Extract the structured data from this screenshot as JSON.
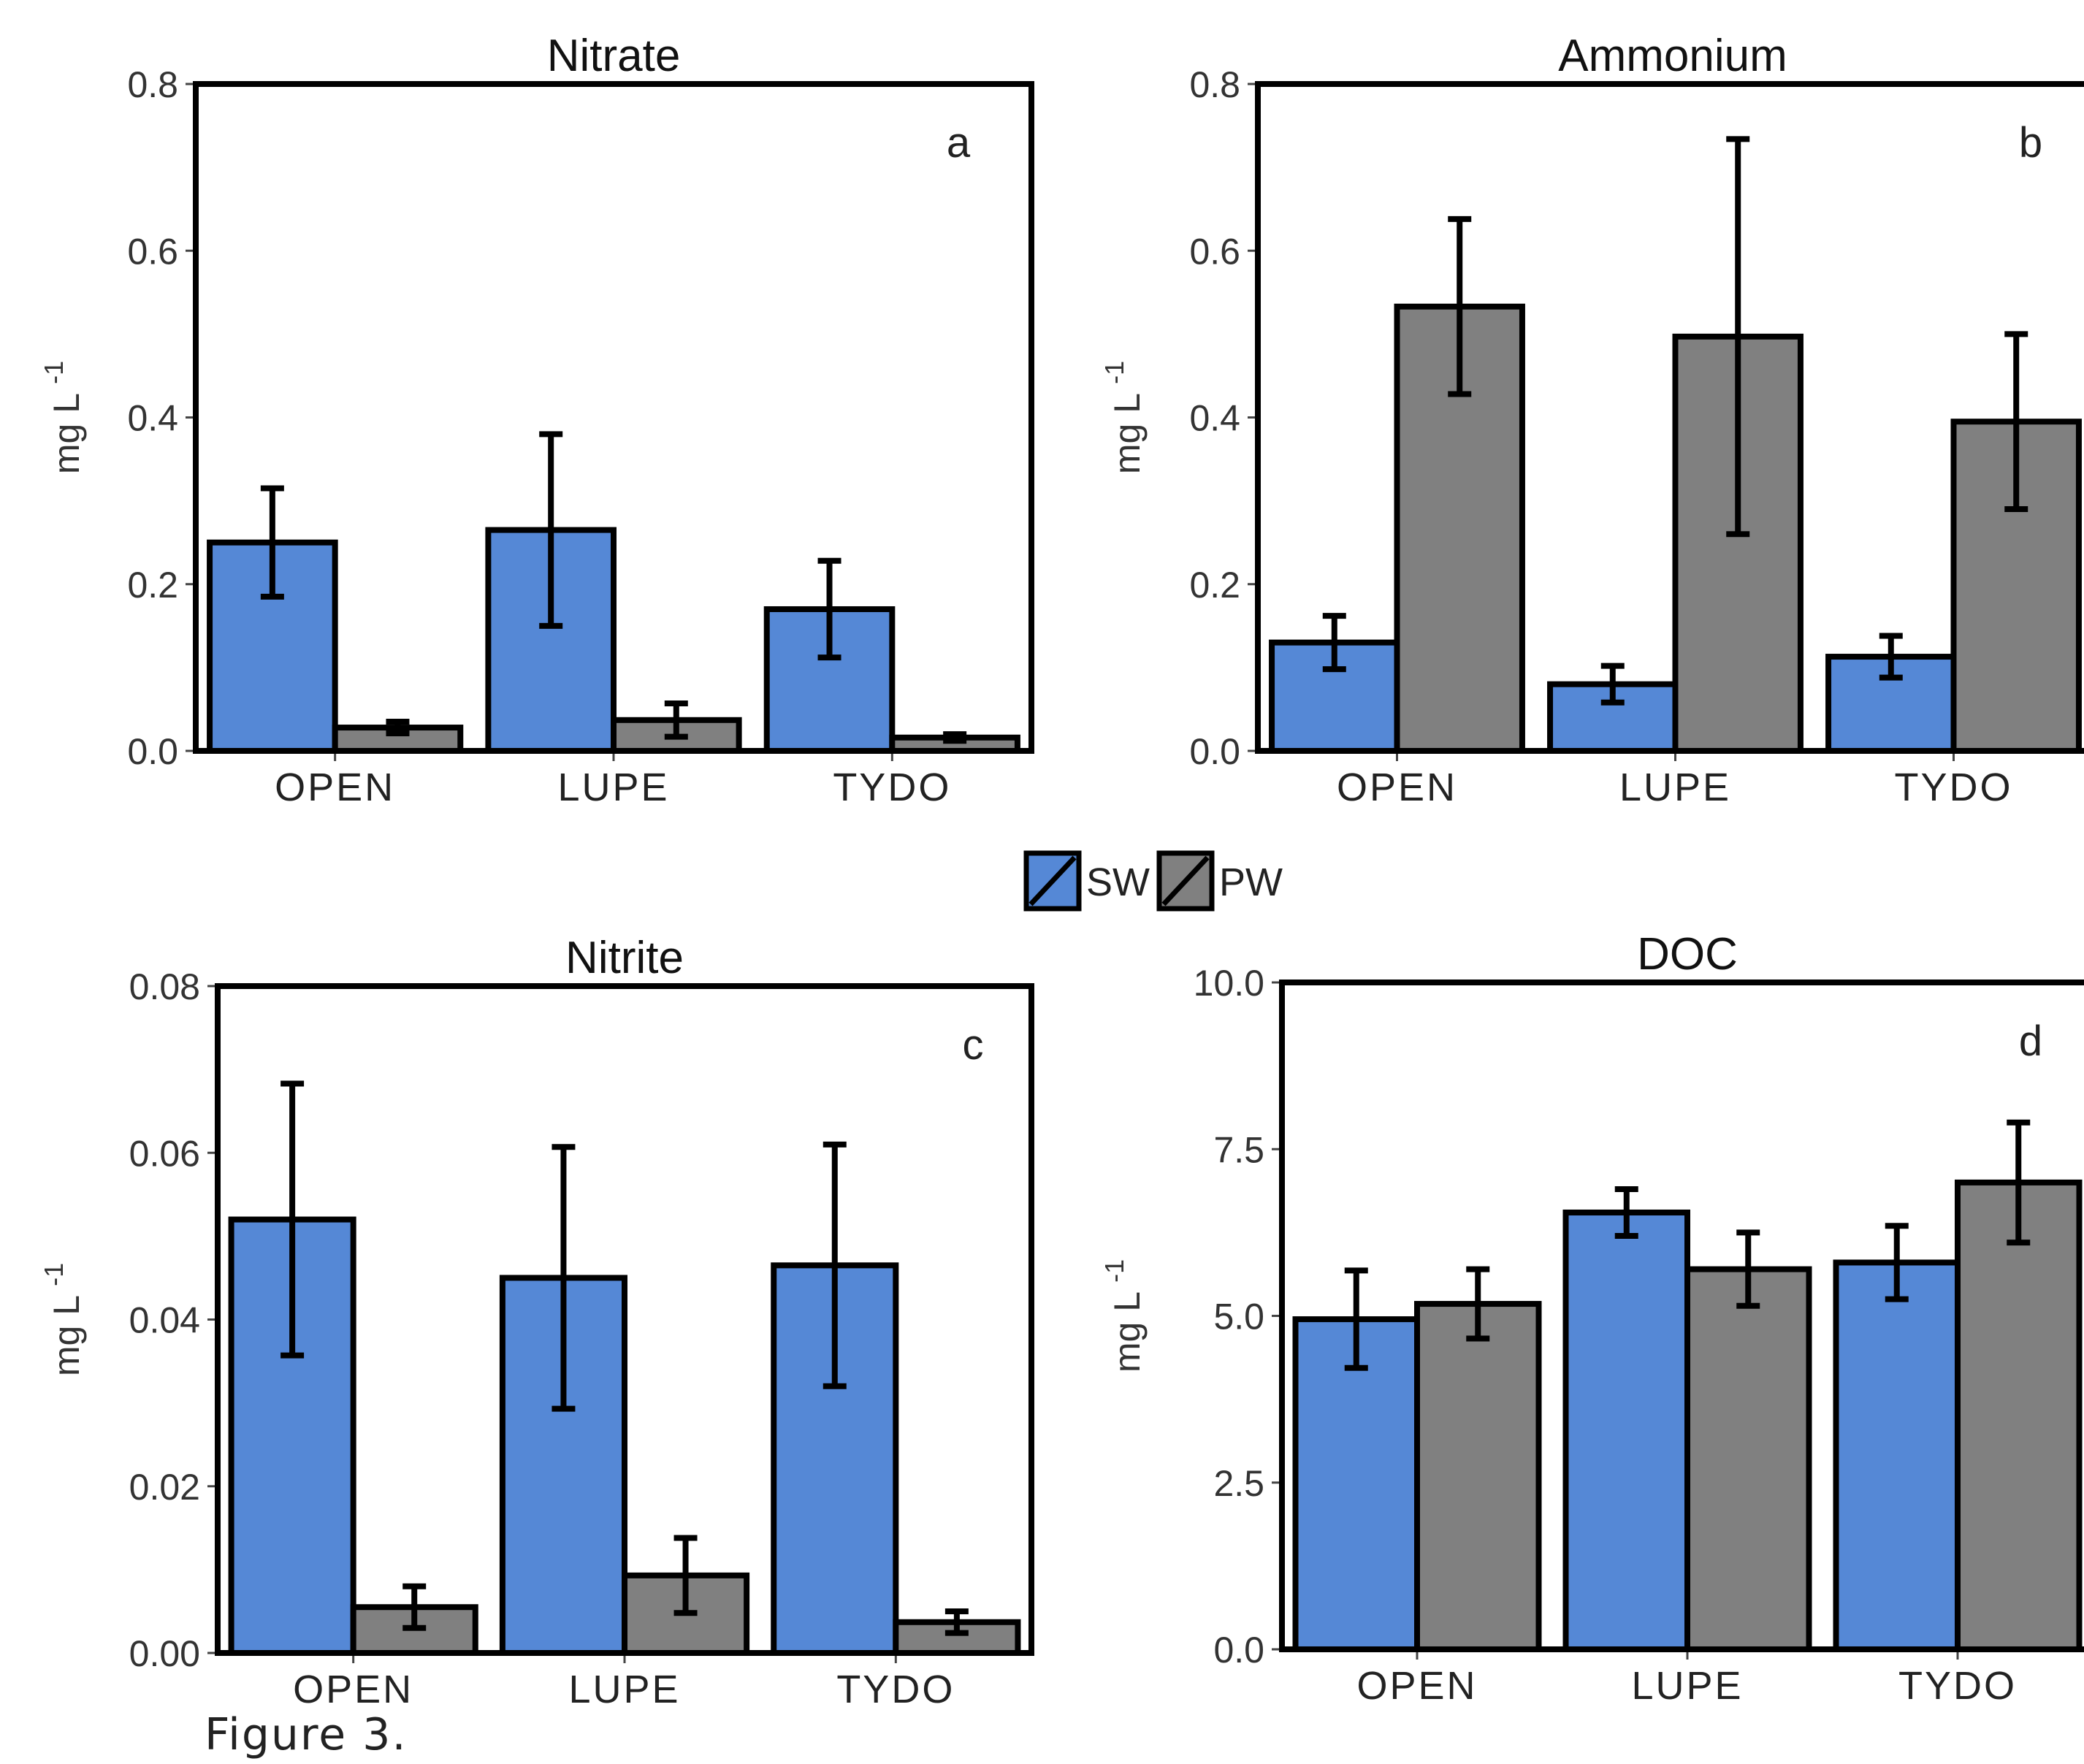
{
  "colors": {
    "SW": "#5588d6",
    "PW": "#808080"
  },
  "legend": {
    "items": [
      "SW",
      "PW"
    ]
  },
  "caption": "Figure 3.",
  "chart_data": [
    {
      "type": "bar",
      "title": "Nitrate",
      "panel_letter": "a",
      "ylabel": "mg L",
      "ylabel_sup": "-1",
      "ylim": [
        0,
        0.8
      ],
      "yticks": [
        "0.0",
        "0.2",
        "0.4",
        "0.6",
        "0.8"
      ],
      "categories": [
        "OPEN",
        "LUPE",
        "TYDO"
      ],
      "series": [
        {
          "name": "SW",
          "values": [
            0.25,
            0.265,
            0.17
          ],
          "errors": [
            0.065,
            0.115,
            0.058
          ]
        },
        {
          "name": "PW",
          "values": [
            0.028,
            0.037,
            0.016
          ],
          "errors": [
            0.007,
            0.02,
            0.004
          ]
        }
      ]
    },
    {
      "type": "bar",
      "title": "Ammonium",
      "panel_letter": "b",
      "ylabel": "mg L",
      "ylabel_sup": "-1",
      "ylim": [
        0,
        0.8
      ],
      "yticks": [
        "0.0",
        "0.2",
        "0.4",
        "0.6",
        "0.8"
      ],
      "categories": [
        "OPEN",
        "LUPE",
        "TYDO"
      ],
      "series": [
        {
          "name": "SW",
          "values": [
            0.13,
            0.08,
            0.113
          ],
          "errors": [
            0.032,
            0.022,
            0.025
          ]
        },
        {
          "name": "PW",
          "values": [
            0.533,
            0.497,
            0.395
          ],
          "errors": [
            0.105,
            0.237,
            0.105
          ]
        }
      ]
    },
    {
      "type": "bar",
      "title": "Nitrite",
      "panel_letter": "c",
      "ylabel": "mg L",
      "ylabel_sup": "-1",
      "ylim": [
        0,
        0.08
      ],
      "yticks": [
        "0.00",
        "0.02",
        "0.04",
        "0.06",
        "0.08"
      ],
      "categories": [
        "OPEN",
        "LUPE",
        "TYDO"
      ],
      "series": [
        {
          "name": "SW",
          "values": [
            0.052,
            0.045,
            0.0465
          ],
          "errors": [
            0.0163,
            0.0157,
            0.0145
          ]
        },
        {
          "name": "PW",
          "values": [
            0.0055,
            0.0093,
            0.0037
          ],
          "errors": [
            0.0025,
            0.0045,
            0.0013
          ]
        }
      ]
    },
    {
      "type": "bar",
      "title": "DOC",
      "panel_letter": "d",
      "ylabel": "mg L",
      "ylabel_sup": "-1",
      "ylim": [
        0,
        10
      ],
      "yticks": [
        "0.0",
        "2.5",
        "5.0",
        "7.5",
        "10.0"
      ],
      "categories": [
        "OPEN",
        "LUPE",
        "TYDO"
      ],
      "series": [
        {
          "name": "SW",
          "values": [
            4.95,
            6.55,
            5.8
          ],
          "errors": [
            0.73,
            0.35,
            0.55
          ]
        },
        {
          "name": "PW",
          "values": [
            5.18,
            5.7,
            7.0
          ],
          "errors": [
            0.52,
            0.55,
            0.9
          ]
        }
      ]
    }
  ]
}
